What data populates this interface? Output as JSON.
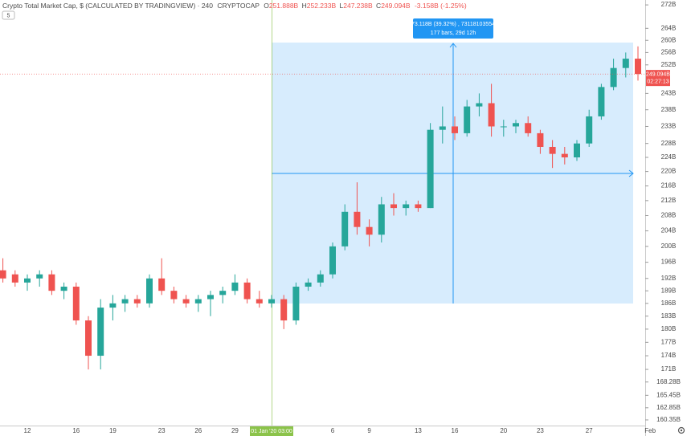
{
  "chart_data": {
    "type": "candlestick",
    "title": "Crypto Total Market Cap, $ (CALCULATED BY TRADINGVIEW) · 240",
    "symbol": "CRYPTOCAP",
    "ohlc_header": [
      {
        "label": "O",
        "value": "251.888B"
      },
      {
        "label": "H",
        "value": "252.233B"
      },
      {
        "label": "L",
        "value": "247.238B"
      },
      {
        "label": "C",
        "value": "249.094B"
      }
    ],
    "change": "-3.158B (-1.25%)",
    "indicators_badge": "5",
    "crosshair_label": "01 Jan '20 03:00",
    "measure": {
      "change": "73.118B (39.32%) , 73118103554",
      "bars": "177 bars, 29d 12h"
    },
    "last_price": {
      "value": 249.094,
      "label": "249.094B"
    },
    "countdown": "02:27:13",
    "up_color": "#26a69a",
    "down_color": "#ef5350",
    "log_scale": true,
    "grid": false,
    "ylim": [
      159.2,
      273.7
    ],
    "yticks": [
      {
        "value": 272,
        "label": "272B"
      },
      {
        "value": 264,
        "label": "264B"
      },
      {
        "value": 260,
        "label": "260B"
      },
      {
        "value": 256,
        "label": "256B"
      },
      {
        "value": 252,
        "label": "252B"
      },
      {
        "value": 243,
        "label": "243B"
      },
      {
        "value": 238,
        "label": "238B"
      },
      {
        "value": 233,
        "label": "233B"
      },
      {
        "value": 228,
        "label": "228B"
      },
      {
        "value": 224,
        "label": "224B"
      },
      {
        "value": 220,
        "label": "220B"
      },
      {
        "value": 216,
        "label": "216B"
      },
      {
        "value": 212,
        "label": "212B"
      },
      {
        "value": 208,
        "label": "208B"
      },
      {
        "value": 204,
        "label": "204B"
      },
      {
        "value": 200,
        "label": "200B"
      },
      {
        "value": 196,
        "label": "196B"
      },
      {
        "value": 192,
        "label": "192B"
      },
      {
        "value": 189,
        "label": "189B"
      },
      {
        "value": 186,
        "label": "186B"
      },
      {
        "value": 183,
        "label": "183B"
      },
      {
        "value": 180,
        "label": "180B"
      },
      {
        "value": 177,
        "label": "177B"
      },
      {
        "value": 174,
        "label": "174B"
      },
      {
        "value": 171,
        "label": "171B"
      },
      {
        "value": 168.28,
        "label": "168.28B"
      },
      {
        "value": 165.45,
        "label": "165.45B"
      },
      {
        "value": 162.85,
        "label": "162.85B"
      },
      {
        "value": 160.35,
        "label": "160.35B"
      }
    ],
    "categories": [
      null,
      null,
      "12",
      null,
      null,
      null,
      "16",
      null,
      null,
      "19",
      null,
      null,
      null,
      "23",
      null,
      null,
      "26",
      null,
      null,
      "29",
      null,
      null,
      null,
      null,
      null,
      null,
      null,
      "6",
      null,
      null,
      "9",
      null,
      null,
      null,
      "13",
      null,
      null,
      "16",
      null,
      null,
      null,
      "20",
      null,
      null,
      "23",
      null,
      null,
      null,
      "27",
      null,
      null,
      null,
      null,
      "Feb"
    ],
    "open": [
      194,
      193,
      191,
      192,
      193,
      189,
      190,
      182,
      174,
      185,
      186,
      187,
      186,
      192,
      189,
      187,
      186,
      187,
      188,
      189,
      191,
      187,
      186,
      187,
      182,
      190,
      191,
      193,
      200,
      209,
      205,
      203,
      211,
      210,
      211,
      210,
      232,
      233,
      231,
      239,
      240,
      233,
      233,
      234,
      231,
      227,
      225,
      224,
      228,
      236,
      245,
      251,
      254,
      null
    ],
    "high": [
      197,
      194,
      193,
      194,
      194,
      191,
      191,
      183,
      187,
      188,
      188,
      188,
      193,
      197,
      190,
      188,
      188,
      189,
      190,
      193,
      192,
      189,
      188,
      188,
      191,
      192,
      194,
      201,
      211,
      217,
      207,
      213,
      214,
      212,
      212,
      234,
      239,
      236,
      241,
      243,
      246,
      235,
      235,
      236,
      232,
      229,
      227,
      229,
      238,
      246,
      254,
      256,
      258,
      null
    ],
    "low": [
      191,
      190,
      189,
      190,
      188,
      187,
      181,
      171,
      171,
      182,
      184,
      185,
      185,
      188,
      186,
      185,
      184,
      183,
      186,
      188,
      186,
      185,
      185,
      180,
      181,
      189,
      190,
      192,
      199,
      203,
      200,
      201,
      208,
      208,
      209,
      210,
      228,
      229,
      230,
      236,
      230,
      230,
      231,
      230,
      225,
      221,
      222,
      223,
      227,
      235,
      244,
      248,
      247,
      null
    ],
    "close": [
      192,
      191,
      192,
      193,
      189,
      190,
      182,
      174,
      185,
      186,
      187,
      186,
      192,
      189,
      187,
      186,
      187,
      188,
      189,
      191,
      187,
      186,
      187,
      182,
      190,
      191,
      193,
      200,
      209,
      205,
      203,
      211,
      210,
      211,
      210,
      232,
      233,
      231,
      239,
      240,
      233,
      233,
      234,
      231,
      227,
      225,
      224,
      228,
      236,
      245,
      251,
      254,
      249.094,
      null
    ]
  }
}
